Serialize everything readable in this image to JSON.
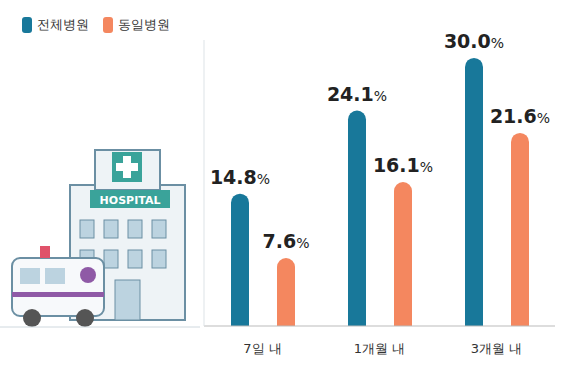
{
  "chart_data": {
    "type": "bar",
    "categories": [
      "7일 내",
      "1개월 내",
      "3개월 내"
    ],
    "series": [
      {
        "name": "전체병원",
        "color": "#18789a",
        "values": [
          14.8,
          24.1,
          30.0
        ],
        "value_labels": [
          "14.8%",
          "24.1%",
          "30.0%"
        ]
      },
      {
        "name": "동일병원",
        "color": "#f4875f",
        "values": [
          7.6,
          16.1,
          21.6
        ],
        "value_labels": [
          "7.6%",
          "16.1%",
          "21.6%"
        ]
      }
    ],
    "ylim": [
      0,
      32
    ],
    "data_labels": true,
    "tick_labels": "x",
    "grid": false,
    "legend": "top-left",
    "annotations": [
      "HOSPITAL"
    ]
  }
}
